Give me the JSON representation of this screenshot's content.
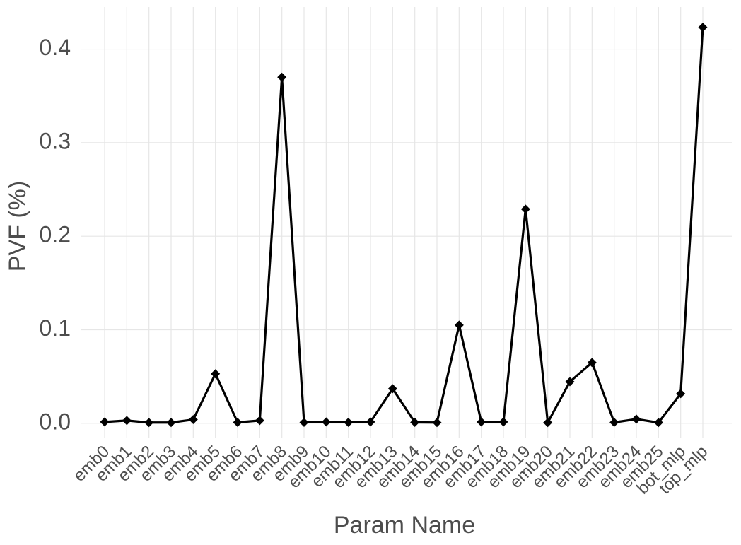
{
  "chart_data": {
    "type": "line",
    "x_label": "Param Name",
    "y_label": "PVF (%)",
    "categories": [
      "emb0",
      "emb1",
      "emb2",
      "emb3",
      "emb4",
      "emb5",
      "emb6",
      "emb7",
      "emb8",
      "emb9",
      "emb10",
      "emb11",
      "emb12",
      "emb13",
      "emb14",
      "emb15",
      "emb16",
      "emb17",
      "emb18",
      "emb19",
      "emb20",
      "emb21",
      "emb22",
      "emb23",
      "emb24",
      "emb25",
      "bot_mlp",
      "top_mlp"
    ],
    "values": [
      0.0015,
      0.003,
      0.0008,
      0.0008,
      0.004,
      0.053,
      0.001,
      0.003,
      0.37,
      0.001,
      0.0015,
      0.001,
      0.0015,
      0.037,
      0.001,
      0.0008,
      0.105,
      0.0015,
      0.0015,
      0.229,
      0.0008,
      0.0445,
      0.065,
      0.001,
      0.0045,
      0.0008,
      0.0317,
      0.4234
    ],
    "color": "#000000",
    "ylim": [
      -0.016,
      0.445
    ],
    "yticks": [
      {
        "value": 0,
        "label": "0.0"
      },
      0.1,
      0.2,
      0.3,
      0.4
    ],
    "grid": true
  }
}
